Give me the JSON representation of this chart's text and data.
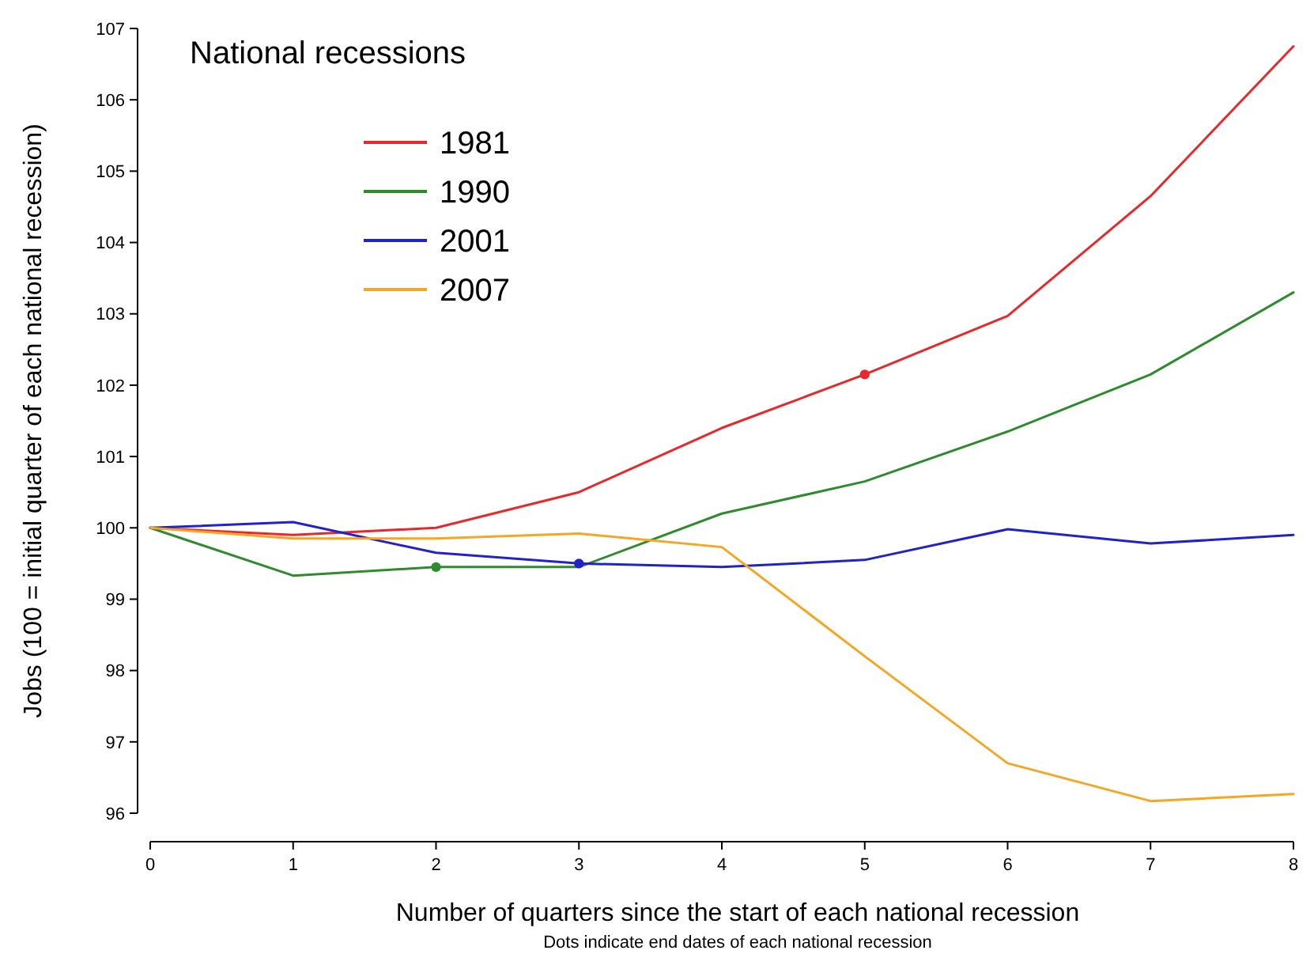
{
  "chart_data": {
    "type": "line",
    "xlabel": "Number of quarters since the start of each national recession",
    "ylabel": "Jobs (100 = initial quarter of each national recession)",
    "legend_title": "National recessions",
    "legend": "top left",
    "grid": false,
    "marker": "none",
    "line_style": "solid",
    "annotations": [
      "Dots indicate end dates of each national recession"
    ],
    "x": [
      0,
      1,
      2,
      3,
      4,
      5,
      6,
      7,
      8
    ],
    "xlim": [
      0,
      8
    ],
    "xticks": [
      0,
      1,
      2,
      3,
      4,
      5,
      6,
      7,
      8
    ],
    "ylim": [
      96,
      107
    ],
    "yticks": [
      96,
      97,
      98,
      99,
      100,
      101,
      102,
      103,
      104,
      105,
      106,
      107
    ],
    "series": [
      {
        "name": "1981",
        "color": "#e8282a",
        "values": [
          100,
          99.9,
          100,
          100.5,
          101.4,
          102.15,
          102.97,
          104.65,
          106.75
        ]
      },
      {
        "name": "1990",
        "color": "#2e8b2e",
        "values": [
          100,
          99.33,
          99.45,
          99.45,
          100.2,
          100.65,
          101.35,
          102.15,
          103.3
        ]
      },
      {
        "name": "2001",
        "color": "#2222cc",
        "values": [
          100,
          100.08,
          99.65,
          99.5,
          99.45,
          99.55,
          99.98,
          99.78,
          99.9
        ]
      },
      {
        "name": "2007",
        "color": "#f5a623",
        "values": [
          100,
          99.85,
          99.85,
          99.92,
          99.73,
          98.2,
          96.7,
          96.17,
          96.27
        ]
      },
      {
        "type": "scatter",
        "marker": "circle",
        "color": "#e8282a",
        "x": [
          5
        ],
        "values": [
          102.15
        ]
      },
      {
        "type": "scatter",
        "marker": "circle",
        "color": "#2e8b2e",
        "x": [
          2
        ],
        "values": [
          99.45
        ]
      },
      {
        "type": "scatter",
        "marker": "circle",
        "color": "#2222cc",
        "x": [
          3
        ],
        "values": [
          99.5
        ]
      }
    ]
  }
}
